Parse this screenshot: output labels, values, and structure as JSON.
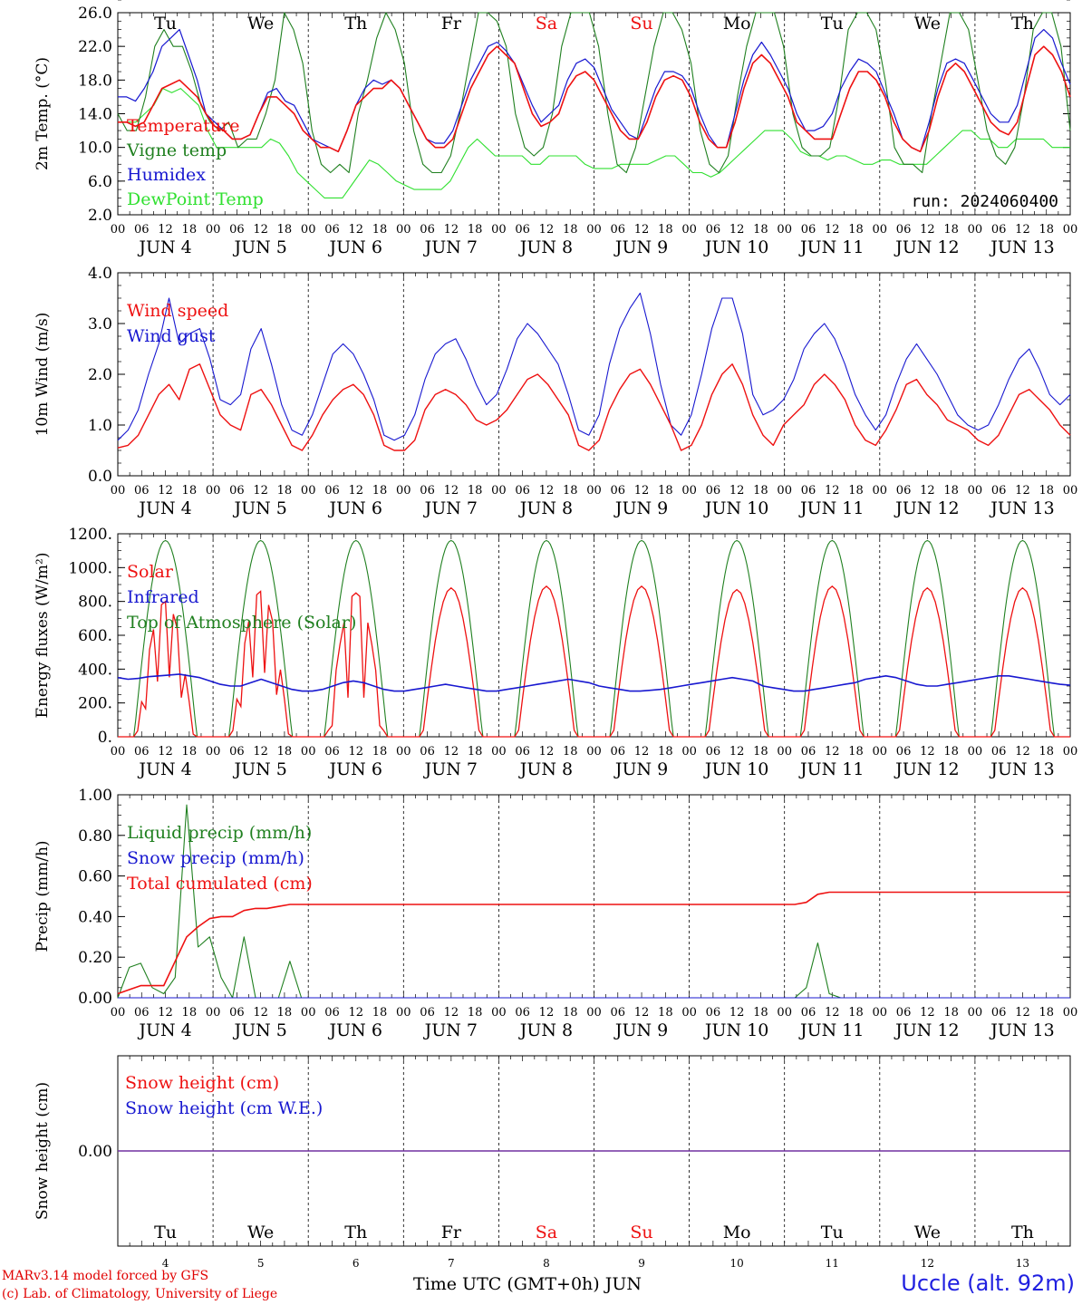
{
  "days": {
    "names": [
      "Tu",
      "We",
      "Th",
      "Fr",
      "Sa",
      "Su",
      "Mo",
      "Tu",
      "We",
      "Th"
    ],
    "numbers": [
      "4",
      "5",
      "6",
      "7",
      "8",
      "9",
      "10",
      "11",
      "12",
      "13"
    ],
    "dates": [
      "JUN  4",
      "JUN  5",
      "JUN  6",
      "JUN  7",
      "JUN  8",
      "JUN  9",
      "JUN 10",
      "JUN 11",
      "JUN 12",
      "JUN 13"
    ],
    "weekend_color": "#ee1111",
    "weekday_color": "#000000",
    "hour_ticks": [
      "00",
      "06",
      "12",
      "18"
    ],
    "last_tick": "00"
  },
  "colors": {
    "red": "#ee1111",
    "green": "#208020",
    "blue": "#1818d0",
    "lightgreen": "#30e030",
    "purple": "#7030a0"
  },
  "run_label": "run: 2024060400",
  "footer": {
    "credit1": "MARv3.14 model forced by GFS",
    "credit2": "(c) Lab. of Climatology, University of Liege",
    "xaxis_label": "Time UTC (GMT+0h) JUN",
    "station": "Uccle (alt. 92m)"
  },
  "chart_data": [
    {
      "type": "line",
      "ylabel": "2m Temp. (°C)",
      "ylim": [
        2,
        26
      ],
      "yticks": [
        "26.0",
        "22.0",
        "18.0",
        "14.0",
        "10.0",
        "6.0",
        "2.0"
      ],
      "series": [
        {
          "name": "Temperature",
          "color": "red",
          "values": [
            13,
            13,
            12.5,
            13,
            15,
            17,
            17.5,
            18,
            17,
            16,
            14,
            12.5,
            12,
            11,
            11,
            11.5,
            14,
            16,
            16,
            15,
            14,
            12,
            11,
            10,
            10,
            9.5,
            12,
            15,
            16,
            17,
            17,
            18,
            17,
            15,
            13,
            11,
            10,
            10,
            11,
            14,
            17,
            19,
            21,
            22,
            21,
            20,
            17,
            14,
            12.5,
            13,
            14,
            17,
            18.5,
            19,
            18,
            16,
            14,
            12,
            11,
            11,
            13,
            16,
            18,
            18.5,
            18,
            16,
            13,
            11,
            10,
            10,
            13,
            17,
            20,
            21,
            20,
            18,
            16,
            13,
            12,
            11,
            11,
            11,
            14,
            17,
            19,
            19,
            18,
            16,
            13,
            11,
            10,
            9.5,
            12,
            16,
            19,
            20,
            19,
            17,
            15,
            13,
            12,
            11.5,
            13,
            17,
            21,
            22,
            21,
            19,
            16
          ]
        },
        {
          "name": "Vigne temp",
          "color": "green",
          "values": [
            14,
            12,
            12,
            16,
            22,
            24,
            22,
            22,
            19,
            15,
            13,
            12,
            13,
            10,
            11,
            11,
            14,
            18,
            26,
            24,
            20,
            12,
            8,
            7,
            8,
            7,
            14,
            18,
            23,
            26,
            24,
            20,
            12,
            8,
            7,
            7,
            9,
            14,
            20,
            26,
            26,
            25,
            22,
            14,
            10,
            9,
            10,
            14,
            22,
            26,
            26,
            26,
            22,
            14,
            8,
            7,
            10,
            16,
            22,
            26,
            26,
            24,
            20,
            12,
            8,
            7,
            9,
            16,
            22,
            26,
            26,
            26,
            22,
            14,
            10,
            9,
            9,
            10,
            16,
            24,
            26,
            26,
            24,
            18,
            10,
            8,
            8,
            7,
            14,
            20,
            26,
            26,
            24,
            18,
            12,
            9,
            8,
            10,
            16,
            24,
            26,
            26,
            22,
            12
          ]
        },
        {
          "name": "Humidex",
          "color": "blue",
          "values": [
            16,
            16,
            15.5,
            17,
            19,
            22,
            23,
            24,
            21,
            18,
            14,
            13,
            12,
            11,
            11,
            11.5,
            14,
            16.5,
            17,
            15.5,
            15,
            13,
            11,
            10.5,
            10,
            9.5,
            12,
            15,
            17,
            18,
            17.5,
            18,
            17,
            15,
            13,
            11,
            10.5,
            10.5,
            12,
            15,
            18,
            20,
            22,
            22.5,
            21.5,
            20,
            17.5,
            15,
            13,
            14,
            15,
            18,
            20,
            20.5,
            19.5,
            17,
            14.5,
            13,
            11.5,
            11,
            14,
            17,
            19,
            19,
            18.5,
            17,
            14,
            11.5,
            10,
            10,
            14,
            18,
            21,
            22.5,
            21,
            19,
            17,
            14,
            12,
            12,
            12.5,
            14,
            17,
            19,
            20.5,
            20,
            19,
            16.5,
            14,
            11,
            10,
            9.5,
            13,
            17,
            20,
            20.5,
            20,
            18,
            16,
            14,
            13,
            13,
            15,
            19,
            23,
            24,
            23,
            20,
            17.5
          ]
        },
        {
          "name": "DewPoint Temp",
          "color": "lightgreen",
          "values": [
            13,
            13,
            13,
            14,
            15,
            17,
            16.5,
            17,
            16,
            15,
            12,
            10,
            10,
            10,
            10,
            10,
            10,
            11,
            10.5,
            9,
            7,
            6,
            5,
            4,
            4,
            4,
            5.5,
            7,
            8.5,
            8,
            7,
            6,
            5.5,
            5,
            5,
            5,
            5,
            6,
            8,
            10,
            11,
            10,
            9,
            9,
            9,
            9,
            8,
            8,
            9,
            9,
            9,
            9,
            8,
            7.5,
            7.5,
            7.5,
            8,
            8,
            8,
            8,
            8.5,
            9,
            9,
            8,
            7,
            7,
            6.5,
            7,
            8,
            9,
            10,
            11,
            12,
            12,
            12,
            11,
            9.5,
            9,
            9,
            8.5,
            9,
            9,
            8.5,
            8,
            8,
            8.5,
            8.5,
            8,
            8,
            8,
            8,
            9,
            10,
            11,
            12,
            12,
            11,
            11,
            10,
            10,
            11,
            11,
            11,
            11,
            10,
            10,
            10
          ]
        }
      ]
    },
    {
      "type": "line",
      "ylabel": "10m Wind (m/s)",
      "ylim": [
        0,
        4
      ],
      "yticks": [
        "4.0",
        "3.0",
        "2.0",
        "1.0",
        "0.0"
      ],
      "series": [
        {
          "name": "Wind speed",
          "color": "red",
          "values": [
            0.55,
            0.6,
            0.8,
            1.2,
            1.6,
            1.8,
            1.5,
            2.1,
            2.2,
            1.7,
            1.2,
            1.0,
            0.9,
            1.6,
            1.7,
            1.4,
            1.0,
            0.6,
            0.5,
            0.8,
            1.2,
            1.5,
            1.7,
            1.8,
            1.6,
            1.2,
            0.6,
            0.5,
            0.5,
            0.7,
            1.3,
            1.6,
            1.7,
            1.6,
            1.4,
            1.1,
            1.0,
            1.1,
            1.3,
            1.6,
            1.9,
            2.0,
            1.8,
            1.5,
            1.2,
            0.6,
            0.5,
            0.7,
            1.3,
            1.7,
            2.0,
            2.1,
            1.8,
            1.4,
            1.0,
            0.5,
            0.6,
            1.0,
            1.6,
            2.0,
            2.2,
            1.8,
            1.2,
            0.8,
            0.6,
            1.0,
            1.2,
            1.4,
            1.8,
            2.0,
            1.8,
            1.5,
            1.0,
            0.7,
            0.6,
            0.9,
            1.3,
            1.8,
            1.9,
            1.6,
            1.4,
            1.1,
            1.0,
            0.9,
            0.7,
            0.6,
            0.8,
            1.2,
            1.6,
            1.7,
            1.5,
            1.3,
            1.0,
            0.8
          ]
        },
        {
          "name": "Wind gust",
          "color": "blue",
          "values": [
            0.7,
            0.9,
            1.3,
            2.0,
            2.6,
            3.5,
            2.6,
            2.8,
            2.9,
            2.3,
            1.5,
            1.4,
            1.6,
            2.5,
            2.9,
            2.2,
            1.4,
            0.9,
            0.8,
            1.2,
            1.8,
            2.4,
            2.6,
            2.4,
            2.0,
            1.5,
            0.8,
            0.7,
            0.8,
            1.2,
            1.9,
            2.4,
            2.6,
            2.7,
            2.3,
            1.8,
            1.4,
            1.6,
            2.1,
            2.7,
            3.0,
            2.8,
            2.5,
            2.2,
            1.6,
            0.9,
            0.8,
            1.2,
            2.2,
            2.9,
            3.3,
            3.6,
            2.8,
            1.8,
            1.0,
            0.8,
            1.2,
            2.0,
            2.9,
            3.5,
            3.5,
            2.8,
            1.6,
            1.2,
            1.3,
            1.5,
            1.9,
            2.5,
            2.8,
            3.0,
            2.7,
            2.2,
            1.6,
            1.2,
            0.9,
            1.2,
            1.8,
            2.3,
            2.6,
            2.3,
            2.0,
            1.6,
            1.2,
            1.0,
            0.9,
            1.0,
            1.4,
            1.9,
            2.3,
            2.5,
            2.1,
            1.6,
            1.4,
            1.6
          ]
        }
      ]
    },
    {
      "type": "line",
      "ylabel": "Energy fluxes (W/m²)",
      "ylim": [
        0,
        1200
      ],
      "yticks": [
        "1200.",
        "1000.",
        "800.",
        "600.",
        "400.",
        "200.",
        "0."
      ],
      "series": [
        {
          "name": "Solar",
          "color": "red",
          "peaks": [
            800,
            860,
            850,
            880,
            890,
            890,
            870,
            890,
            880,
            880
          ],
          "values": []
        },
        {
          "name": "Infrared",
          "color": "blue",
          "values": [
            350,
            340,
            345,
            355,
            360,
            365,
            370,
            360,
            350,
            330,
            310,
            300,
            300,
            320,
            340,
            320,
            300,
            280,
            270,
            270,
            280,
            300,
            320,
            330,
            320,
            300,
            280,
            270,
            270,
            280,
            290,
            300,
            310,
            300,
            290,
            280,
            270,
            270,
            280,
            290,
            300,
            310,
            320,
            330,
            340,
            330,
            320,
            300,
            290,
            280,
            270,
            270,
            275,
            280,
            290,
            300,
            310,
            320,
            330,
            340,
            350,
            340,
            330,
            300,
            290,
            280,
            270,
            270,
            280,
            290,
            300,
            310,
            320,
            340,
            350,
            360,
            350,
            330,
            310,
            300,
            300,
            310,
            320,
            330,
            340,
            350,
            360,
            360,
            350,
            340,
            330,
            320,
            310,
            305
          ]
        },
        {
          "name": "Top of Atmosphere (Solar)",
          "color": "green",
          "peak": 1160,
          "values": []
        }
      ]
    },
    {
      "type": "line",
      "ylabel": "Precip (mm/h)",
      "ylim": [
        0,
        1
      ],
      "yticks": [
        "1.00",
        "0.80",
        "0.60",
        "0.40",
        "0.20",
        "0.00"
      ],
      "series": [
        {
          "name": "Liquid precip (mm/h)",
          "color": "green",
          "values": [
            0,
            0.15,
            0.17,
            0.05,
            0.02,
            0.1,
            0.95,
            0.25,
            0.3,
            0.1,
            0,
            0.3,
            0,
            0,
            0,
            0.18,
            0,
            0,
            0,
            0,
            0,
            0,
            0,
            0,
            0,
            0,
            0,
            0,
            0,
            0,
            0,
            0,
            0,
            0,
            0,
            0,
            0,
            0,
            0,
            0,
            0,
            0,
            0,
            0,
            0,
            0,
            0,
            0,
            0,
            0,
            0,
            0,
            0,
            0,
            0,
            0,
            0,
            0,
            0,
            0,
            0.05,
            0.27,
            0.02,
            0,
            0,
            0,
            0,
            0,
            0,
            0,
            0,
            0,
            0,
            0,
            0,
            0,
            0,
            0,
            0,
            0,
            0,
            0,
            0,
            0
          ]
        },
        {
          "name": "Snow precip (mm/h)",
          "color": "blue",
          "values": [
            0,
            0,
            0,
            0,
            0,
            0,
            0,
            0,
            0,
            0,
            0,
            0,
            0,
            0,
            0,
            0,
            0,
            0,
            0,
            0,
            0,
            0,
            0,
            0,
            0,
            0,
            0,
            0,
            0,
            0,
            0,
            0,
            0,
            0,
            0,
            0,
            0,
            0,
            0,
            0,
            0,
            0,
            0,
            0,
            0,
            0,
            0,
            0,
            0,
            0,
            0,
            0,
            0,
            0,
            0,
            0,
            0,
            0,
            0,
            0,
            0,
            0,
            0,
            0,
            0,
            0,
            0,
            0,
            0,
            0,
            0,
            0,
            0,
            0,
            0,
            0,
            0,
            0,
            0,
            0,
            0,
            0,
            0,
            0
          ]
        },
        {
          "name": "Total cumulated (cm)",
          "color": "red",
          "values": [
            0.02,
            0.04,
            0.06,
            0.06,
            0.06,
            0.18,
            0.3,
            0.35,
            0.39,
            0.4,
            0.4,
            0.43,
            0.44,
            0.44,
            0.45,
            0.46,
            0.46,
            0.46,
            0.46,
            0.46,
            0.46,
            0.46,
            0.46,
            0.46,
            0.46,
            0.46,
            0.46,
            0.46,
            0.46,
            0.46,
            0.46,
            0.46,
            0.46,
            0.46,
            0.46,
            0.46,
            0.46,
            0.46,
            0.46,
            0.46,
            0.46,
            0.46,
            0.46,
            0.46,
            0.46,
            0.46,
            0.46,
            0.46,
            0.46,
            0.46,
            0.46,
            0.46,
            0.46,
            0.46,
            0.46,
            0.46,
            0.46,
            0.46,
            0.46,
            0.46,
            0.47,
            0.51,
            0.52,
            0.52,
            0.52,
            0.52,
            0.52,
            0.52,
            0.52,
            0.52,
            0.52,
            0.52,
            0.52,
            0.52,
            0.52,
            0.52,
            0.52,
            0.52,
            0.52,
            0.52,
            0.52,
            0.52,
            0.52,
            0.52
          ]
        }
      ]
    },
    {
      "type": "line",
      "ylabel": "Snow height (cm)",
      "ylim": [
        -1,
        1
      ],
      "yticks": [
        "0.00"
      ],
      "series": [
        {
          "name": "Snow height (cm)",
          "color": "red",
          "values": [
            0,
            0
          ]
        },
        {
          "name": "Snow height (cm W.E.)",
          "color": "blue",
          "values": [
            0,
            0
          ]
        }
      ]
    }
  ]
}
